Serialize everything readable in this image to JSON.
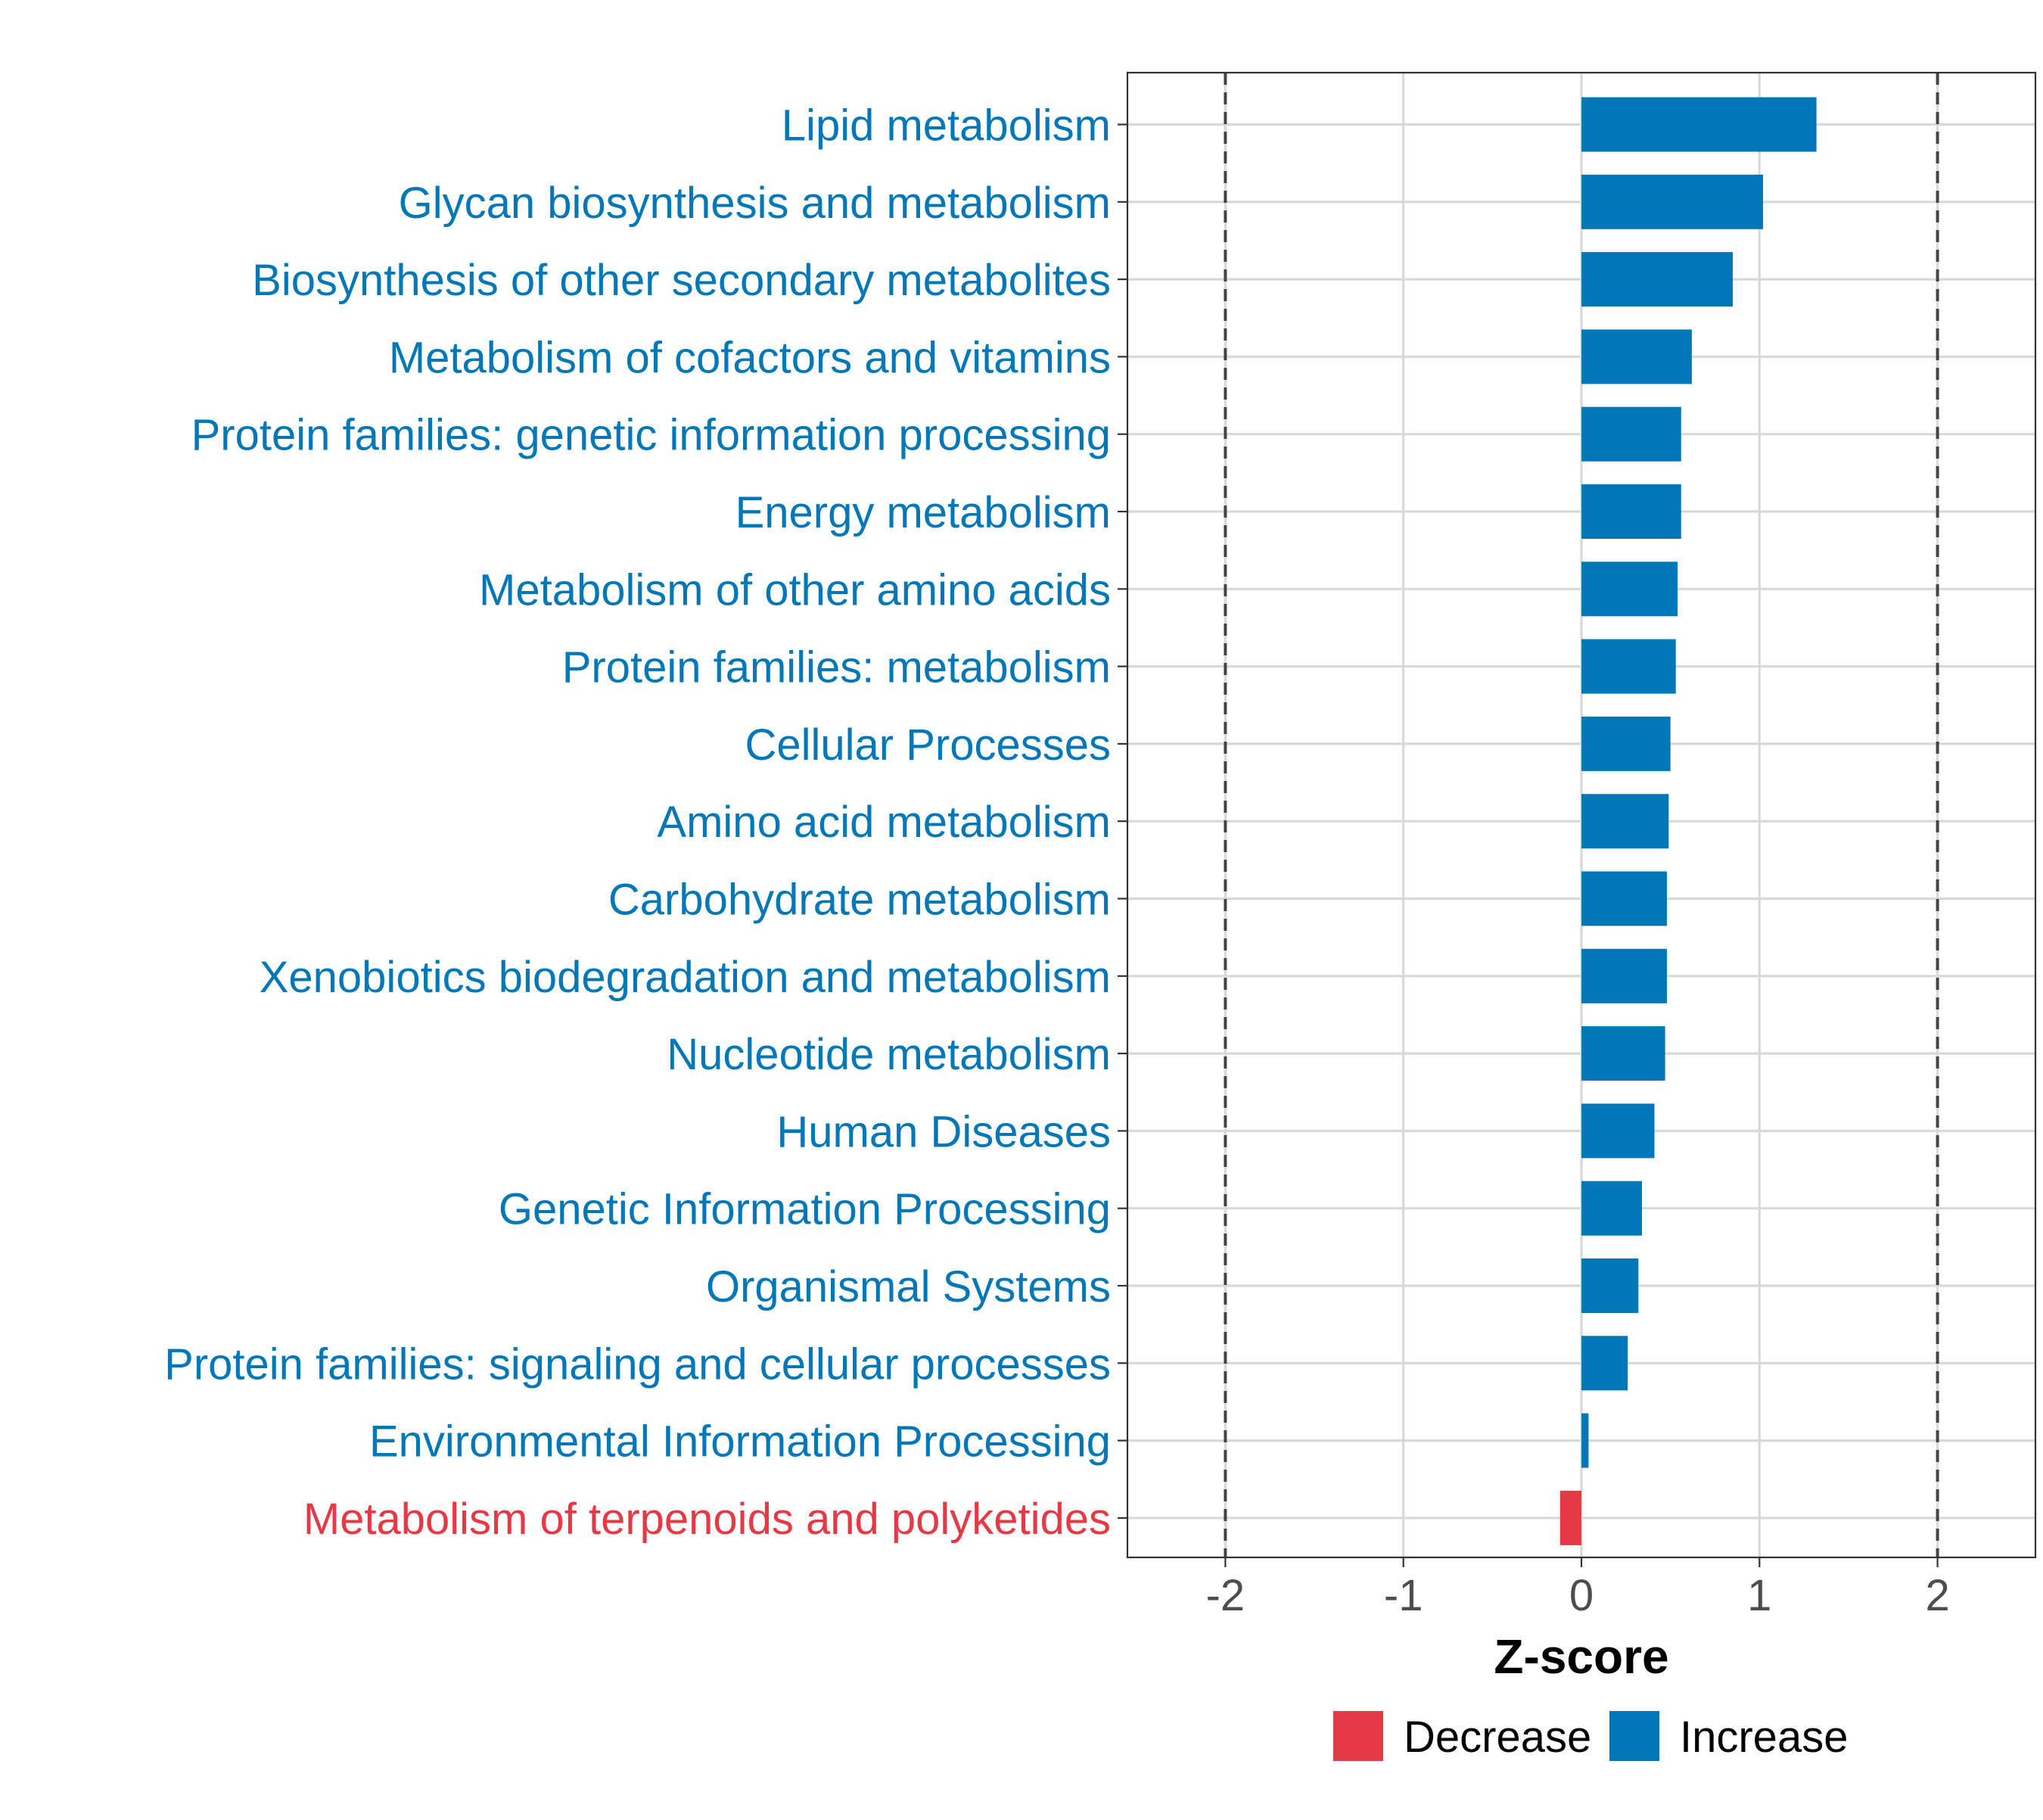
{
  "chart_data": {
    "type": "bar",
    "orientation": "horizontal",
    "title": "",
    "xlabel": "Z-score",
    "ylabel": "",
    "xlim": [
      -2.55,
      2.55
    ],
    "x_ticks": [
      -2,
      -1,
      0,
      1,
      2
    ],
    "x_tick_labels": [
      "-2",
      "-1",
      "0",
      "1",
      "2"
    ],
    "reference_lines": [
      -2,
      2
    ],
    "grid": true,
    "colors": {
      "Increase": "#0077b6",
      "Decrease": "#e63946"
    },
    "legend": {
      "position": "bottom",
      "entries": [
        "Decrease",
        "Increase"
      ]
    },
    "categories": [
      "Lipid metabolism",
      "Glycan biosynthesis and metabolism",
      "Biosynthesis of other secondary metabolites",
      "Metabolism of cofactors and vitamins",
      "Protein families: genetic information processing",
      "Energy metabolism",
      "Metabolism of other amino acids",
      "Protein families: metabolism",
      "Cellular Processes",
      "Amino acid metabolism",
      "Carbohydrate metabolism",
      "Xenobiotics biodegradation and metabolism",
      "Nucleotide metabolism",
      "Human Diseases",
      "Genetic Information Processing",
      "Organismal Systems",
      "Protein families: signaling and cellular processes",
      "Environmental Information Processing",
      "Metabolism of terpenoids and polyketides"
    ],
    "values": [
      1.32,
      1.02,
      0.85,
      0.62,
      0.56,
      0.56,
      0.54,
      0.53,
      0.5,
      0.49,
      0.48,
      0.48,
      0.47,
      0.41,
      0.34,
      0.32,
      0.26,
      0.04,
      -0.12
    ],
    "groups": [
      "Increase",
      "Increase",
      "Increase",
      "Increase",
      "Increase",
      "Increase",
      "Increase",
      "Increase",
      "Increase",
      "Increase",
      "Increase",
      "Increase",
      "Increase",
      "Increase",
      "Increase",
      "Increase",
      "Increase",
      "Increase",
      "Decrease"
    ]
  }
}
